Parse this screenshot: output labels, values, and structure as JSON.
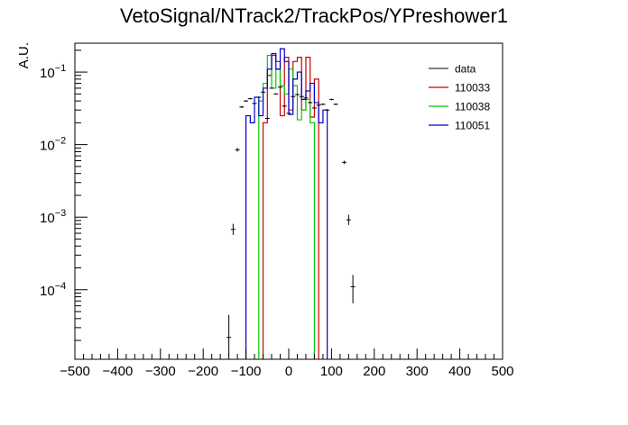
{
  "chart_data": {
    "type": "histogram",
    "title": "VetoSignal/NTrack2/TrackPos/YPreshower1",
    "xlabel": "",
    "ylabel": "A.U.",
    "xlim": [
      -500,
      500
    ],
    "ylim": [
      1.1e-05,
      0.25
    ],
    "y_scale": "log",
    "x_ticks": [
      -500,
      -400,
      -300,
      -200,
      -100,
      0,
      100,
      200,
      300,
      400,
      500
    ],
    "x_tick_labels": [
      "−500",
      "−400",
      "−300",
      "−200",
      "−100",
      "0",
      "100",
      "200",
      "300",
      "400",
      "500"
    ],
    "y_ticks": [
      {
        "value": 0.0001,
        "base": "10",
        "exp": "−4"
      },
      {
        "value": 0.001,
        "base": "10",
        "exp": "−3"
      },
      {
        "value": 0.01,
        "base": "10",
        "exp": "−2"
      },
      {
        "value": 0.1,
        "base": "10",
        "exp": "−1"
      }
    ],
    "legend_position": "top-right",
    "legend": [
      {
        "label": "data",
        "color": "#000000",
        "style": "marker"
      },
      {
        "label": "110033",
        "color": "#cc0000",
        "style": "line"
      },
      {
        "label": "110038",
        "color": "#00cc00",
        "style": "line"
      },
      {
        "label": "110051",
        "color": "#0000cc",
        "style": "line"
      }
    ],
    "series": [
      {
        "name": "data",
        "kind": "points",
        "color": "#000000",
        "points": [
          {
            "x": -140,
            "y": 2.2e-05,
            "lo": 1.25e-05,
            "hi": 4.5e-05
          },
          {
            "x": -130,
            "y": 0.00068,
            "lo": 0.00057,
            "hi": 0.00081
          },
          {
            "x": -120,
            "y": 0.0085,
            "lo": 0.008,
            "hi": 0.009
          },
          {
            "x": -110,
            "y": 0.033,
            "lo": 0.032,
            "hi": 0.034
          },
          {
            "x": -100,
            "y": 0.04,
            "lo": 0.039,
            "hi": 0.041
          },
          {
            "x": -90,
            "y": 0.043,
            "lo": 0.042,
            "hi": 0.044
          },
          {
            "x": -80,
            "y": 0.037,
            "lo": 0.036,
            "hi": 0.038
          },
          {
            "x": -70,
            "y": 0.045,
            "lo": 0.044,
            "hi": 0.046
          },
          {
            "x": -60,
            "y": 0.053,
            "lo": 0.052,
            "hi": 0.054
          },
          {
            "x": -50,
            "y": 0.023,
            "lo": 0.0225,
            "hi": 0.0235
          },
          {
            "x": -40,
            "y": 0.06,
            "lo": 0.059,
            "hi": 0.061
          },
          {
            "x": -30,
            "y": 0.05,
            "lo": 0.049,
            "hi": 0.051
          },
          {
            "x": -20,
            "y": 0.062,
            "lo": 0.061,
            "hi": 0.063
          },
          {
            "x": -10,
            "y": 0.034,
            "lo": 0.033,
            "hi": 0.035
          },
          {
            "x": 0,
            "y": 0.027,
            "lo": 0.0265,
            "hi": 0.0275
          },
          {
            "x": 10,
            "y": 0.046,
            "lo": 0.045,
            "hi": 0.047
          },
          {
            "x": 20,
            "y": 0.049,
            "lo": 0.048,
            "hi": 0.05
          },
          {
            "x": 30,
            "y": 0.046,
            "lo": 0.045,
            "hi": 0.047
          },
          {
            "x": 40,
            "y": 0.044,
            "lo": 0.043,
            "hi": 0.045
          },
          {
            "x": 50,
            "y": 0.038,
            "lo": 0.037,
            "hi": 0.039
          },
          {
            "x": 60,
            "y": 0.032,
            "lo": 0.031,
            "hi": 0.033
          },
          {
            "x": 70,
            "y": 0.035,
            "lo": 0.034,
            "hi": 0.036
          },
          {
            "x": 80,
            "y": 0.036,
            "lo": 0.035,
            "hi": 0.037
          },
          {
            "x": 90,
            "y": 0.03,
            "lo": 0.029,
            "hi": 0.031
          },
          {
            "x": 100,
            "y": 0.042,
            "lo": 0.041,
            "hi": 0.043
          },
          {
            "x": 110,
            "y": 0.036,
            "lo": 0.035,
            "hi": 0.037
          },
          {
            "x": 130,
            "y": 0.0057,
            "lo": 0.0054,
            "hi": 0.006
          },
          {
            "x": 140,
            "y": 0.00092,
            "lo": 0.00078,
            "hi": 0.00108
          },
          {
            "x": 150,
            "y": 0.00011,
            "lo": 6.5e-05,
            "hi": 0.00016
          }
        ]
      },
      {
        "name": "110033",
        "kind": "step",
        "color": "#cc0000",
        "edges": [
          -60,
          -50,
          -40,
          -30,
          -20,
          -10,
          0,
          10,
          20,
          30,
          40,
          50,
          60,
          70
        ],
        "values": [
          0.02,
          0.09,
          0.17,
          0.14,
          0.025,
          0.16,
          0.03,
          0.14,
          0.16,
          0.03,
          0.16,
          0.024,
          0.08
        ]
      },
      {
        "name": "110038",
        "kind": "step",
        "color": "#00cc00",
        "edges": [
          -70,
          -60,
          -50,
          -40,
          -30,
          -20,
          -10,
          0,
          10,
          20,
          30,
          40,
          50,
          60
        ],
        "values": [
          0.04,
          0.07,
          0.17,
          0.06,
          0.11,
          0.065,
          0.05,
          0.11,
          0.065,
          0.022,
          0.03,
          0.042,
          0.02
        ]
      },
      {
        "name": "110051",
        "kind": "step",
        "color": "#0000cc",
        "edges": [
          -100,
          -90,
          -80,
          -70,
          -60,
          -50,
          -40,
          -30,
          -20,
          -10,
          0,
          10,
          20,
          30,
          40,
          50,
          60,
          70,
          80,
          90
        ],
        "values": [
          0.025,
          0.02,
          0.045,
          0.025,
          0.06,
          0.11,
          0.18,
          0.11,
          0.21,
          0.14,
          0.026,
          0.08,
          0.1,
          0.042,
          0.055,
          0.07,
          0.038,
          0.02,
          0.03
        ]
      }
    ]
  }
}
